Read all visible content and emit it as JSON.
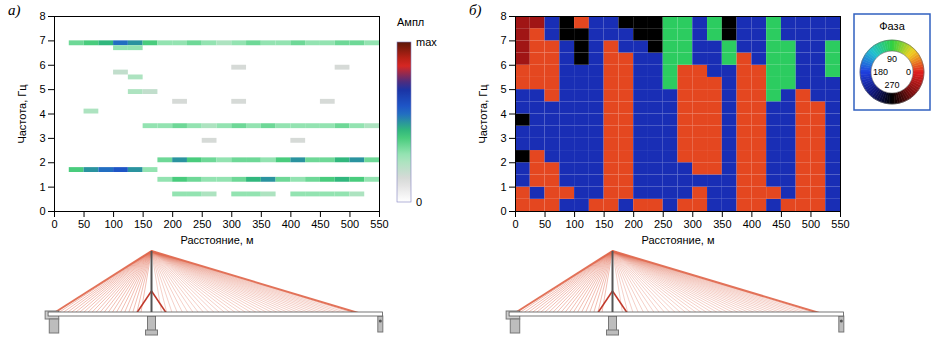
{
  "chart_data": [
    {
      "type": "heatmap",
      "panel": "а)",
      "x_label": "Расстояние, м",
      "y_label": "Частота, Гц",
      "xlim": [
        0,
        550
      ],
      "xticks": [
        0,
        50,
        100,
        150,
        200,
        250,
        300,
        350,
        400,
        450,
        500,
        550
      ],
      "ylim": [
        0,
        8
      ],
      "yticks": [
        0,
        1,
        2,
        3,
        4,
        5,
        6,
        7,
        8
      ],
      "cell_width": 25,
      "cell_height": 0.2,
      "cells": [
        [
          25,
          6.8,
          0.35
        ],
        [
          50,
          6.8,
          0.4
        ],
        [
          75,
          6.8,
          0.45
        ],
        [
          100,
          6.8,
          0.55
        ],
        [
          125,
          6.8,
          0.5
        ],
        [
          150,
          6.8,
          0.4
        ],
        [
          175,
          6.8,
          0.3
        ],
        [
          200,
          6.8,
          0.3
        ],
        [
          225,
          6.8,
          0.35
        ],
        [
          250,
          6.8,
          0.3
        ],
        [
          275,
          6.8,
          0.25
        ],
        [
          300,
          6.8,
          0.3
        ],
        [
          325,
          6.8,
          0.35
        ],
        [
          350,
          6.8,
          0.3
        ],
        [
          375,
          6.8,
          0.3
        ],
        [
          400,
          6.8,
          0.35
        ],
        [
          425,
          6.8,
          0.3
        ],
        [
          450,
          6.8,
          0.3
        ],
        [
          475,
          6.8,
          0.35
        ],
        [
          500,
          6.8,
          0.35
        ],
        [
          525,
          6.8,
          0.3
        ],
        [
          100,
          6.6,
          0.3
        ],
        [
          125,
          6.6,
          0.3
        ],
        [
          300,
          5.8,
          0.15
        ],
        [
          475,
          5.8,
          0.15
        ],
        [
          100,
          5.6,
          0.2
        ],
        [
          125,
          5.4,
          0.25
        ],
        [
          125,
          4.8,
          0.25
        ],
        [
          150,
          4.8,
          0.2
        ],
        [
          200,
          4.4,
          0.15
        ],
        [
          300,
          4.4,
          0.15
        ],
        [
          450,
          4.4,
          0.15
        ],
        [
          50,
          4.0,
          0.25
        ],
        [
          150,
          3.4,
          0.3
        ],
        [
          175,
          3.4,
          0.3
        ],
        [
          200,
          3.4,
          0.35
        ],
        [
          225,
          3.4,
          0.3
        ],
        [
          250,
          3.4,
          0.25
        ],
        [
          275,
          3.4,
          0.3
        ],
        [
          300,
          3.4,
          0.35
        ],
        [
          325,
          3.4,
          0.3
        ],
        [
          350,
          3.4,
          0.35
        ],
        [
          375,
          3.4,
          0.3
        ],
        [
          400,
          3.4,
          0.3
        ],
        [
          425,
          3.4,
          0.3
        ],
        [
          450,
          3.4,
          0.3
        ],
        [
          475,
          3.4,
          0.35
        ],
        [
          500,
          3.4,
          0.3
        ],
        [
          525,
          3.4,
          0.25
        ],
        [
          250,
          2.8,
          0.15
        ],
        [
          400,
          2.8,
          0.15
        ],
        [
          175,
          2.0,
          0.35
        ],
        [
          200,
          2.0,
          0.5
        ],
        [
          225,
          2.0,
          0.4
        ],
        [
          250,
          2.0,
          0.35
        ],
        [
          275,
          2.0,
          0.3
        ],
        [
          300,
          2.0,
          0.35
        ],
        [
          325,
          2.0,
          0.35
        ],
        [
          350,
          2.0,
          0.3
        ],
        [
          375,
          2.0,
          0.4
        ],
        [
          400,
          2.0,
          0.5
        ],
        [
          425,
          2.0,
          0.35
        ],
        [
          450,
          2.0,
          0.35
        ],
        [
          475,
          2.0,
          0.45
        ],
        [
          500,
          2.0,
          0.5
        ],
        [
          525,
          2.0,
          0.35
        ],
        [
          25,
          1.6,
          0.4
        ],
        [
          50,
          1.6,
          0.5
        ],
        [
          75,
          1.6,
          0.55
        ],
        [
          100,
          1.6,
          0.6
        ],
        [
          125,
          1.6,
          0.5
        ],
        [
          150,
          1.6,
          0.3
        ],
        [
          175,
          1.2,
          0.3
        ],
        [
          200,
          1.2,
          0.4
        ],
        [
          225,
          1.2,
          0.35
        ],
        [
          250,
          1.2,
          0.3
        ],
        [
          275,
          1.2,
          0.3
        ],
        [
          300,
          1.2,
          0.35
        ],
        [
          325,
          1.2,
          0.45
        ],
        [
          350,
          1.2,
          0.5
        ],
        [
          375,
          1.2,
          0.35
        ],
        [
          400,
          1.2,
          0.3
        ],
        [
          425,
          1.2,
          0.35
        ],
        [
          450,
          1.2,
          0.4
        ],
        [
          475,
          1.2,
          0.45
        ],
        [
          500,
          1.2,
          0.4
        ],
        [
          525,
          1.2,
          0.3
        ],
        [
          200,
          0.6,
          0.3
        ],
        [
          225,
          0.6,
          0.3
        ],
        [
          250,
          0.6,
          0.25
        ],
        [
          300,
          0.6,
          0.3
        ],
        [
          325,
          0.6,
          0.3
        ],
        [
          350,
          0.6,
          0.25
        ],
        [
          400,
          0.6,
          0.3
        ],
        [
          425,
          0.6,
          0.3
        ],
        [
          450,
          0.6,
          0.3
        ],
        [
          475,
          0.6,
          0.3
        ],
        [
          500,
          0.6,
          0.25
        ]
      ],
      "colorbar": {
        "title": "Ампл",
        "range": [
          0,
          1
        ],
        "ticks": [
          {
            "value": 1,
            "label": "max"
          },
          0
        ]
      }
    },
    {
      "type": "heatmap",
      "panel": "б)",
      "x_label": "Расстояние, м",
      "y_label": "Частота, Гц",
      "xlim": [
        0,
        550
      ],
      "xticks": [
        0,
        50,
        100,
        150,
        200,
        250,
        300,
        350,
        400,
        450,
        500,
        550
      ],
      "ylim": [
        0,
        8
      ],
      "yticks": [
        0,
        1,
        2,
        3,
        4,
        5,
        6,
        7,
        8
      ],
      "cell_width": 25,
      "cell_height": 0.5,
      "x": [
        0,
        25,
        50,
        75,
        100,
        125,
        150,
        175,
        200,
        225,
        250,
        275,
        300,
        325,
        350,
        375,
        400,
        425,
        450,
        475,
        500,
        525
      ],
      "y": [
        0,
        0.5,
        1,
        1.5,
        2,
        2.5,
        3,
        3.5,
        4,
        4.5,
        5,
        5.5,
        6,
        6.5,
        7,
        7.5
      ],
      "values": [
        [
          10,
          10,
          10,
          200,
          200,
          10,
          10,
          200,
          10,
          10,
          200,
          10,
          10,
          200,
          200,
          10,
          10,
          200,
          10,
          10,
          10,
          200
        ],
        [
          10,
          200,
          10,
          10,
          200,
          200,
          10,
          10,
          200,
          200,
          200,
          200,
          10,
          200,
          200,
          10,
          10,
          10,
          200,
          10,
          10,
          200
        ],
        [
          200,
          10,
          10,
          200,
          200,
          200,
          10,
          10,
          200,
          200,
          200,
          200,
          200,
          200,
          200,
          10,
          10,
          200,
          200,
          10,
          10,
          200
        ],
        [
          200,
          10,
          10,
          200,
          200,
          200,
          10,
          10,
          200,
          200,
          200,
          200,
          10,
          10,
          200,
          10,
          10,
          200,
          200,
          10,
          10,
          200
        ],
        [
          270,
          10,
          200,
          200,
          200,
          200,
          10,
          10,
          200,
          200,
          200,
          10,
          10,
          10,
          200,
          10,
          10,
          200,
          200,
          10,
          10,
          200
        ],
        [
          200,
          200,
          200,
          200,
          200,
          200,
          10,
          10,
          200,
          200,
          200,
          10,
          10,
          10,
          200,
          10,
          10,
          200,
          200,
          10,
          10,
          200
        ],
        [
          200,
          200,
          200,
          200,
          200,
          200,
          10,
          10,
          200,
          200,
          200,
          10,
          10,
          10,
          200,
          10,
          10,
          200,
          200,
          10,
          10,
          200
        ],
        [
          270,
          200,
          200,
          200,
          200,
          200,
          10,
          10,
          200,
          200,
          200,
          10,
          10,
          10,
          200,
          10,
          10,
          200,
          200,
          10,
          10,
          200
        ],
        [
          200,
          200,
          200,
          200,
          200,
          200,
          10,
          10,
          200,
          200,
          200,
          10,
          10,
          10,
          200,
          10,
          10,
          200,
          200,
          10,
          10,
          200
        ],
        [
          200,
          200,
          10,
          200,
          200,
          200,
          10,
          10,
          200,
          200,
          200,
          10,
          10,
          10,
          200,
          10,
          10,
          100,
          200,
          10,
          200,
          200
        ],
        [
          10,
          10,
          10,
          200,
          200,
          200,
          10,
          10,
          200,
          200,
          100,
          10,
          10,
          10,
          200,
          10,
          10,
          100,
          100,
          200,
          200,
          200
        ],
        [
          10,
          10,
          10,
          200,
          200,
          200,
          10,
          10,
          200,
          200,
          100,
          10,
          10,
          200,
          200,
          10,
          10,
          100,
          100,
          200,
          200,
          100
        ],
        [
          330,
          10,
          10,
          200,
          270,
          200,
          10,
          10,
          200,
          200,
          100,
          100,
          200,
          200,
          100,
          10,
          200,
          100,
          100,
          200,
          200,
          100
        ],
        [
          330,
          10,
          10,
          200,
          270,
          200,
          10,
          200,
          200,
          270,
          100,
          100,
          200,
          200,
          100,
          200,
          200,
          100,
          100,
          200,
          200,
          100
        ],
        [
          330,
          10,
          200,
          270,
          270,
          200,
          200,
          200,
          270,
          270,
          100,
          100,
          200,
          100,
          270,
          200,
          200,
          100,
          200,
          200,
          200,
          200
        ],
        [
          330,
          330,
          200,
          270,
          10,
          200,
          200,
          270,
          270,
          270,
          100,
          100,
          200,
          100,
          270,
          200,
          200,
          100,
          200,
          200,
          200,
          200
        ]
      ],
      "color_wheel": {
        "title": "Фаза",
        "range": [
          0,
          360
        ],
        "ticks": [
          0,
          90,
          180,
          270
        ]
      }
    }
  ]
}
